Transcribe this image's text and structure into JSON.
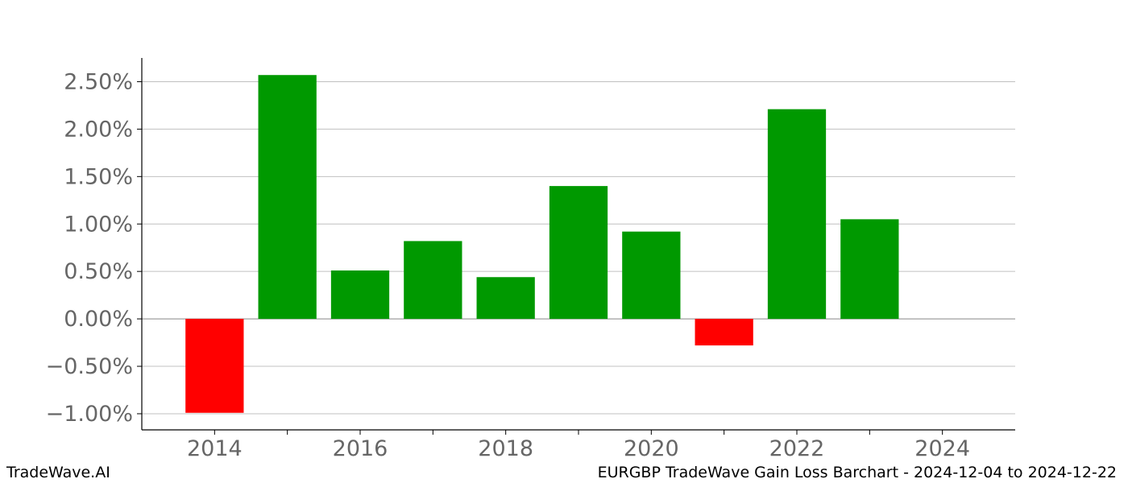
{
  "chart_data": {
    "type": "bar",
    "title": "",
    "xlabel": "",
    "ylabel": "",
    "categories": [
      "2014",
      "2015",
      "2016",
      "2017",
      "2018",
      "2019",
      "2020",
      "2021",
      "2022",
      "2023"
    ],
    "values": [
      -0.99,
      2.57,
      0.51,
      0.82,
      0.44,
      1.4,
      0.92,
      -0.28,
      2.21,
      1.05
    ],
    "value_unit": "%",
    "xlim": [
      2013,
      2025
    ],
    "ylim": [
      -1.17,
      2.75
    ],
    "yticks": [
      -1.0,
      -0.5,
      0.0,
      0.5,
      1.0,
      1.5,
      2.0,
      2.5
    ],
    "ytick_labels": [
      "−1.00%",
      "−0.50%",
      "0.00%",
      "0.50%",
      "1.00%",
      "1.50%",
      "2.00%",
      "2.50%"
    ],
    "xticks_major": [
      2014,
      2016,
      2018,
      2020,
      2022,
      2024
    ],
    "xtick_labels": [
      "2014",
      "2016",
      "2018",
      "2020",
      "2022",
      "2024"
    ],
    "xticks_minor": [
      2015,
      2017,
      2019,
      2021,
      2023
    ],
    "grid": true,
    "colors": {
      "positive": "#009900",
      "negative": "#ff0000",
      "grid": "#c0c0c0",
      "zero_line": "#888888",
      "tick_label": "#666666",
      "axis": "#000000"
    }
  },
  "footer": {
    "left": "TradeWave.AI",
    "right": "EURGBP TradeWave Gain Loss Barchart - 2024-12-04 to 2024-12-22"
  }
}
